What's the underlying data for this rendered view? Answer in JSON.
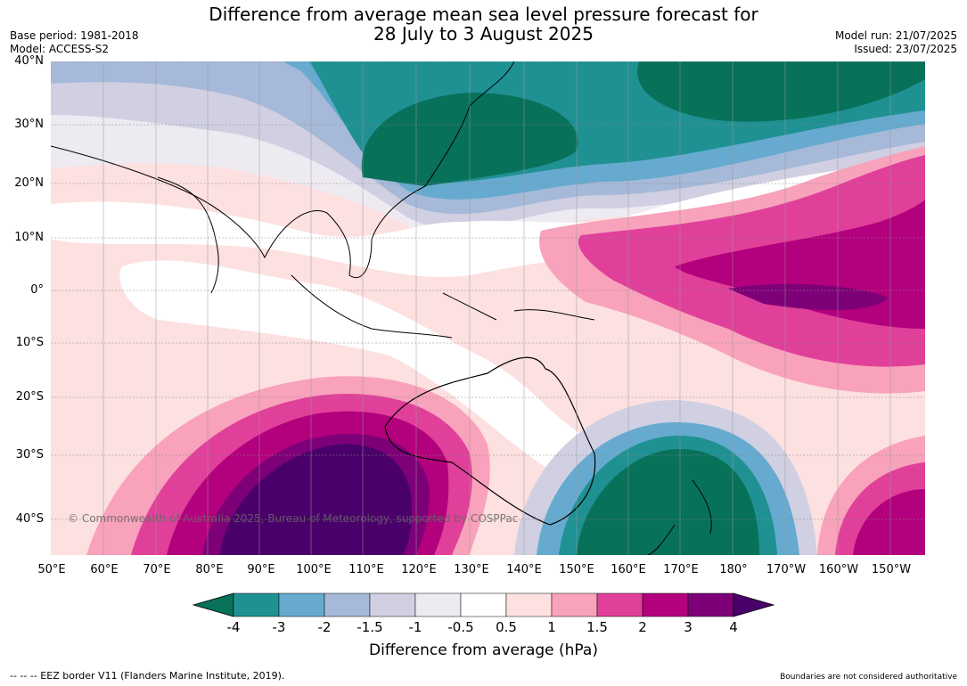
{
  "title_line1": "Difference from average mean sea level pressure forecast for",
  "title_line2": "28 July to 3 August 2025",
  "base_period": "Base period: 1981-2018",
  "model": "Model: ACCESS-S2",
  "model_run": "Model run: 21/07/2025",
  "issued": "Issued: 23/07/2025",
  "copyright": "© Commonwealth of Australia 2025, Bureau of Meteorology, supported by COSPPac",
  "lat_labels": [
    "40°N",
    "30°N",
    "20°N",
    "10°N",
    "0°",
    "10°S",
    "20°S",
    "30°S",
    "40°S"
  ],
  "lon_labels": [
    "50°E",
    "60°E",
    "70°E",
    "80°E",
    "90°E",
    "100°E",
    "110°E",
    "120°E",
    "130°E",
    "140°E",
    "150°E",
    "160°E",
    "170°E",
    "180°",
    "170°W",
    "160°W",
    "150°W"
  ],
  "colorbar": {
    "ticks": [
      "-4",
      "-3",
      "-2",
      "-1.5",
      "-1",
      "-0.5",
      "0.5",
      "1",
      "1.5",
      "2",
      "3",
      "4"
    ],
    "colors": [
      "#08715a",
      "#1f9193",
      "#66aacf",
      "#a6b9d8",
      "#d0d0e2",
      "#eeeaf2",
      "#ffffff",
      "#fde0e0",
      "#f8a2bb",
      "#e0409a",
      "#b3007c",
      "#7e0078",
      "#4a006a"
    ],
    "label": "Difference from average (hPa)"
  },
  "footer_left": "--  --  -- EEZ border V11 (Flanders Marine Institute, 2019).",
  "footer_right": "Boundaries are not considered authoritative"
}
